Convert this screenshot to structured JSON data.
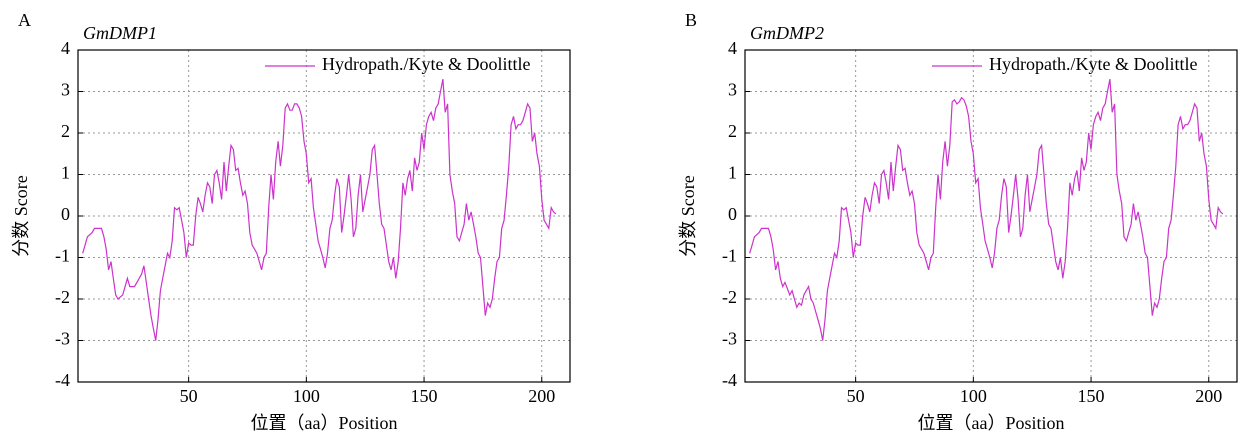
{
  "chart_data": [
    {
      "type": "line",
      "panel": "A",
      "title": "GmDMP1",
      "xlabel": "位置（aa）Position",
      "ylabel": "分数 Score",
      "x": [
        5,
        6,
        7,
        8,
        9,
        10,
        11,
        12,
        13,
        14,
        15,
        16,
        17,
        18,
        19,
        20,
        21,
        22,
        23,
        24,
        25,
        26,
        27,
        28,
        29,
        30,
        31,
        32,
        33,
        34,
        35,
        36,
        37,
        38,
        39,
        40,
        41,
        42,
        43,
        44,
        45,
        46,
        47,
        48,
        49,
        50,
        51,
        52,
        53,
        54,
        55,
        56,
        57,
        58,
        59,
        60,
        61,
        62,
        63,
        64,
        65,
        66,
        67,
        68,
        69,
        70,
        71,
        72,
        73,
        74,
        75,
        76,
        77,
        78,
        79,
        80,
        81,
        82,
        83,
        84,
        85,
        86,
        87,
        88,
        89,
        90,
        91,
        92,
        93,
        94,
        95,
        96,
        97,
        98,
        99,
        100,
        101,
        102,
        103,
        104,
        105,
        106,
        107,
        108,
        109,
        110,
        111,
        112,
        113,
        114,
        115,
        116,
        117,
        118,
        119,
        120,
        121,
        122,
        123,
        124,
        125,
        126,
        127,
        128,
        129,
        130,
        131,
        132,
        133,
        134,
        135,
        136,
        137,
        138,
        139,
        140,
        141,
        142,
        143,
        144,
        145,
        146,
        147,
        148,
        149,
        150,
        151,
        152,
        153,
        154,
        155,
        156,
        157,
        158,
        159,
        160,
        161,
        162,
        163,
        164,
        165,
        166,
        167,
        168,
        169,
        170,
        171,
        172,
        173,
        174,
        175,
        176,
        177,
        178,
        179,
        180,
        181,
        182,
        183,
        184,
        185,
        186,
        187,
        188,
        189,
        190,
        191,
        192,
        193,
        194,
        195,
        196,
        197,
        198,
        199,
        200,
        201,
        202,
        203,
        204,
        205,
        206
      ],
      "series": [
        {
          "name": "Hydropath./Kyte & Doolittle",
          "color": "#cc33cc",
          "values": [
            -0.9,
            -0.7,
            -0.5,
            -0.45,
            -0.4,
            -0.3,
            -0.3,
            -0.3,
            -0.3,
            -0.5,
            -0.8,
            -1.3,
            -1.1,
            -1.5,
            -1.9,
            -2.0,
            -1.95,
            -1.9,
            -1.7,
            -1.5,
            -1.7,
            -1.7,
            -1.7,
            -1.6,
            -1.5,
            -1.4,
            -1.2,
            -1.6,
            -2.0,
            -2.4,
            -2.7,
            -3.0,
            -2.5,
            -1.8,
            -1.5,
            -1.2,
            -0.9,
            -1.0,
            -0.6,
            0.2,
            0.15,
            0.2,
            -0.1,
            -0.4,
            -1.0,
            -0.65,
            -0.7,
            -0.7,
            0.0,
            0.45,
            0.3,
            0.1,
            0.5,
            0.8,
            0.7,
            0.3,
            1.0,
            1.1,
            0.8,
            0.4,
            1.3,
            0.6,
            1.2,
            1.7,
            1.6,
            1.1,
            1.15,
            0.8,
            0.5,
            0.6,
            0.3,
            -0.4,
            -0.7,
            -0.8,
            -0.9,
            -1.1,
            -1.3,
            -1.0,
            -0.9,
            0.2,
            1.0,
            0.4,
            1.3,
            1.8,
            1.2,
            1.7,
            2.6,
            2.7,
            2.55,
            2.55,
            2.7,
            2.7,
            2.6,
            2.4,
            1.8,
            1.5,
            0.8,
            0.9,
            0.2,
            -0.2,
            -0.6,
            -0.8,
            -1.0,
            -1.25,
            -0.9,
            -0.3,
            -0.1,
            0.5,
            0.9,
            0.7,
            -0.4,
            0.0,
            0.5,
            1.0,
            0.4,
            -0.5,
            -0.3,
            0.5,
            1.0,
            0.1,
            0.4,
            0.7,
            1.0,
            1.6,
            1.7,
            1.0,
            0.3,
            -0.2,
            -0.3,
            -0.7,
            -1.1,
            -1.3,
            -1.0,
            -1.5,
            -1.1,
            -0.3,
            0.8,
            0.5,
            0.9,
            1.1,
            0.6,
            1.4,
            1.1,
            1.3,
            2.0,
            1.6,
            2.2,
            2.4,
            2.5,
            2.3,
            2.6,
            2.7,
            3.0,
            3.3,
            2.5,
            2.7,
            1.0,
            0.6,
            0.3,
            -0.5,
            -0.6,
            -0.4,
            -0.2,
            0.3,
            -0.1,
            0.1,
            -0.2,
            -0.5,
            -0.9,
            -1.0,
            -1.7,
            -2.4,
            -2.1,
            -2.2,
            -2.0,
            -1.5,
            -1.1,
            -1.0,
            -0.3,
            -0.1,
            0.5,
            1.2,
            2.2,
            2.4,
            2.1,
            2.2,
            2.2,
            2.3,
            2.5,
            2.7,
            2.6,
            1.8,
            2.0,
            1.5,
            1.2,
            0.4,
            -0.1,
            -0.2,
            -0.3,
            0.2,
            0.1,
            0.05
          ]
        }
      ],
      "xlim": [
        3,
        212
      ],
      "ylim": [
        -4,
        4
      ],
      "xticks": [
        50,
        100,
        150,
        200
      ],
      "yticks": [
        -4,
        -3,
        -2,
        -1,
        0,
        1,
        2,
        3,
        4
      ],
      "grid": true,
      "legend": "upper right"
    },
    {
      "type": "line",
      "panel": "B",
      "title": "GmDMP2",
      "xlabel": "位置（aa）Position",
      "ylabel": "分数 Score",
      "x": [
        5,
        6,
        7,
        8,
        9,
        10,
        11,
        12,
        13,
        14,
        15,
        16,
        17,
        18,
        19,
        20,
        21,
        22,
        23,
        24,
        25,
        26,
        27,
        28,
        29,
        30,
        31,
        32,
        33,
        34,
        35,
        36,
        37,
        38,
        39,
        40,
        41,
        42,
        43,
        44,
        45,
        46,
        47,
        48,
        49,
        50,
        51,
        52,
        53,
        54,
        55,
        56,
        57,
        58,
        59,
        60,
        61,
        62,
        63,
        64,
        65,
        66,
        67,
        68,
        69,
        70,
        71,
        72,
        73,
        74,
        75,
        76,
        77,
        78,
        79,
        80,
        81,
        82,
        83,
        84,
        85,
        86,
        87,
        88,
        89,
        90,
        91,
        92,
        93,
        94,
        95,
        96,
        97,
        98,
        99,
        100,
        101,
        102,
        103,
        104,
        105,
        106,
        107,
        108,
        109,
        110,
        111,
        112,
        113,
        114,
        115,
        116,
        117,
        118,
        119,
        120,
        121,
        122,
        123,
        124,
        125,
        126,
        127,
        128,
        129,
        130,
        131,
        132,
        133,
        134,
        135,
        136,
        137,
        138,
        139,
        140,
        141,
        142,
        143,
        144,
        145,
        146,
        147,
        148,
        149,
        150,
        151,
        152,
        153,
        154,
        155,
        156,
        157,
        158,
        159,
        160,
        161,
        162,
        163,
        164,
        165,
        166,
        167,
        168,
        169,
        170,
        171,
        172,
        173,
        174,
        175,
        176,
        177,
        178,
        179,
        180,
        181,
        182,
        183,
        184,
        185,
        186,
        187,
        188,
        189,
        190,
        191,
        192,
        193,
        194,
        195,
        196,
        197,
        198,
        199,
        200,
        201,
        202,
        203,
        204,
        205,
        206
      ],
      "series": [
        {
          "name": "Hydropath./Kyte & Doolittle",
          "color": "#cc33cc",
          "values": [
            -0.9,
            -0.7,
            -0.5,
            -0.45,
            -0.4,
            -0.3,
            -0.3,
            -0.3,
            -0.3,
            -0.5,
            -0.8,
            -1.3,
            -1.1,
            -1.5,
            -1.7,
            -1.6,
            -1.75,
            -1.9,
            -1.8,
            -2.0,
            -2.2,
            -2.1,
            -2.15,
            -1.9,
            -1.8,
            -1.7,
            -2.0,
            -2.1,
            -2.3,
            -2.5,
            -2.7,
            -3.0,
            -2.5,
            -1.8,
            -1.5,
            -1.2,
            -0.9,
            -1.0,
            -0.6,
            0.2,
            0.15,
            0.2,
            -0.1,
            -0.4,
            -1.0,
            -0.65,
            -0.7,
            -0.7,
            0.0,
            0.45,
            0.3,
            0.1,
            0.5,
            0.8,
            0.7,
            0.3,
            1.0,
            1.1,
            0.8,
            0.4,
            1.3,
            0.6,
            1.2,
            1.7,
            1.6,
            1.1,
            1.15,
            0.8,
            0.5,
            0.6,
            0.3,
            -0.4,
            -0.7,
            -0.8,
            -0.9,
            -1.1,
            -1.3,
            -1.0,
            -0.9,
            0.2,
            1.0,
            0.4,
            1.3,
            1.8,
            1.2,
            1.7,
            2.75,
            2.8,
            2.7,
            2.75,
            2.85,
            2.8,
            2.65,
            2.4,
            1.8,
            1.5,
            0.8,
            0.9,
            0.2,
            -0.2,
            -0.6,
            -0.8,
            -1.0,
            -1.25,
            -0.9,
            -0.3,
            -0.1,
            0.5,
            0.9,
            0.7,
            -0.4,
            0.0,
            0.5,
            1.0,
            0.4,
            -0.5,
            -0.3,
            0.5,
            1.0,
            0.1,
            0.4,
            0.7,
            1.0,
            1.6,
            1.7,
            1.0,
            0.3,
            -0.2,
            -0.3,
            -0.7,
            -1.1,
            -1.3,
            -1.0,
            -1.5,
            -1.1,
            -0.3,
            0.8,
            0.5,
            0.9,
            1.1,
            0.6,
            1.4,
            1.1,
            1.3,
            2.0,
            1.6,
            2.2,
            2.4,
            2.5,
            2.3,
            2.6,
            2.7,
            3.0,
            3.3,
            2.5,
            2.7,
            1.0,
            0.6,
            0.3,
            -0.5,
            -0.6,
            -0.4,
            -0.2,
            0.3,
            -0.1,
            0.1,
            -0.2,
            -0.5,
            -0.9,
            -1.0,
            -1.7,
            -2.4,
            -2.1,
            -2.2,
            -2.0,
            -1.5,
            -1.1,
            -1.0,
            -0.3,
            -0.1,
            0.5,
            1.2,
            2.2,
            2.4,
            2.1,
            2.2,
            2.2,
            2.3,
            2.5,
            2.7,
            2.6,
            1.8,
            2.0,
            1.5,
            1.2,
            0.4,
            -0.1,
            -0.2,
            -0.3,
            0.2,
            0.1,
            0.05
          ]
        }
      ],
      "xlim": [
        3,
        212
      ],
      "ylim": [
        -4,
        4
      ],
      "xticks": [
        50,
        100,
        150,
        200
      ],
      "yticks": [
        -4,
        -3,
        -2,
        -1,
        0,
        1,
        2,
        3,
        4
      ],
      "grid": true,
      "legend": "upper right"
    }
  ]
}
